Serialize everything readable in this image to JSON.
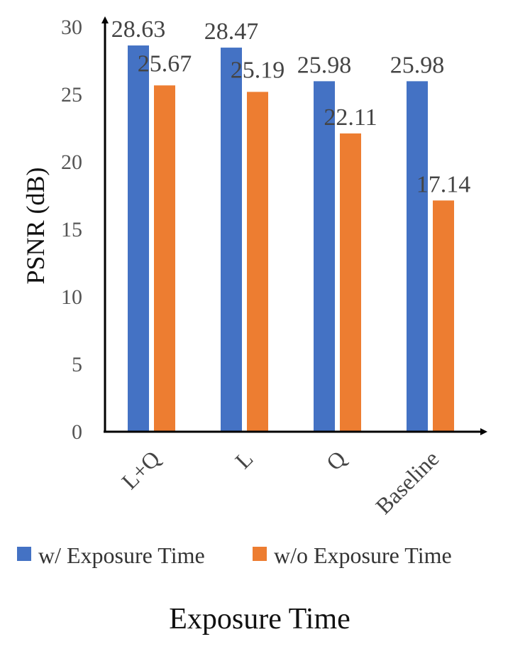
{
  "chart_data": {
    "type": "bar",
    "categories": [
      "L+Q",
      "L",
      "Q",
      "Baseline"
    ],
    "series": [
      {
        "name": "w/ Exposure Time",
        "values": [
          28.63,
          28.47,
          25.98,
          25.98
        ],
        "color": "#4472C4"
      },
      {
        "name": "w/o Exposure Time",
        "values": [
          25.67,
          25.19,
          22.11,
          17.14
        ],
        "color": "#ED7D31"
      }
    ],
    "data_labels": [
      [
        "28.63",
        "28.47",
        "25.98",
        "25.98"
      ],
      [
        "25.67",
        "25.19",
        "22.11",
        "17.14"
      ]
    ],
    "ylabel": "PSNR (dB)",
    "xlabel": "Exposure Time",
    "ylim": [
      0,
      30
    ],
    "yticks": [
      0,
      5,
      10,
      15,
      20,
      25,
      30
    ],
    "grid": false,
    "legend_position": "bottom"
  }
}
